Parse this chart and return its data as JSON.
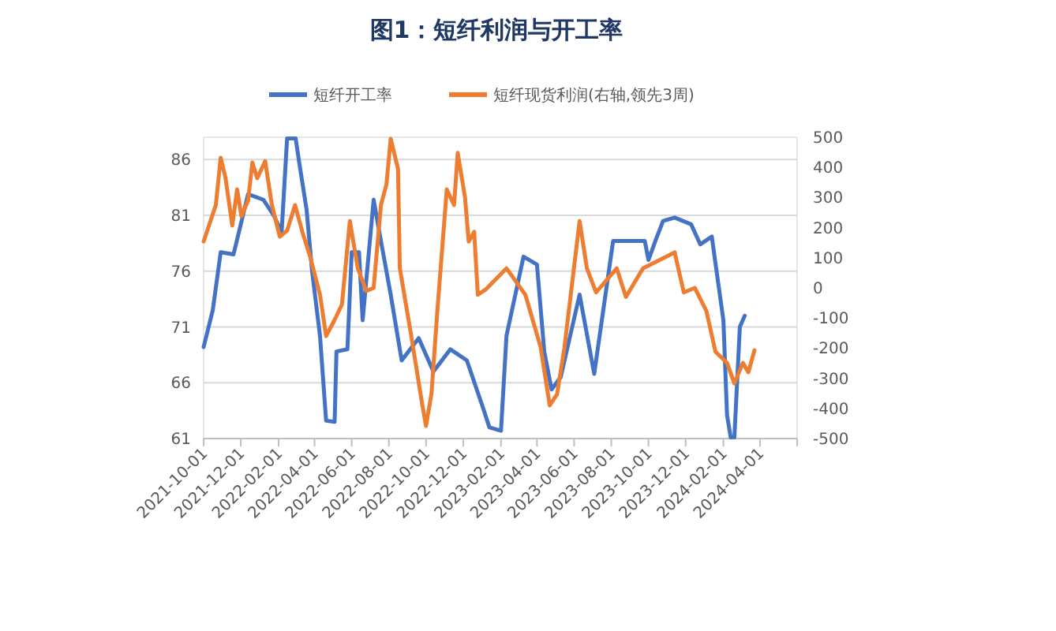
{
  "chart_data": {
    "type": "line",
    "title": "图1：短纤利润与开工率",
    "legend": "top",
    "grid": "y",
    "xlim": [
      "2021-10-01",
      "2024-06-01"
    ],
    "xticks": [
      "2021-10-01",
      "2021-12-01",
      "2022-02-01",
      "2022-04-01",
      "2022-06-01",
      "2022-08-01",
      "2022-10-01",
      "2022-12-01",
      "2023-02-01",
      "2023-04-01",
      "2023-06-01",
      "2023-08-01",
      "2023-10-01",
      "2023-12-01",
      "2024-02-01",
      "2024-04-01",
      {
        "value": "2024-06-01",
        "label": null
      }
    ],
    "ylim": [
      61,
      88
    ],
    "yticks": [
      61,
      66,
      71,
      76,
      81,
      86
    ],
    "y2lim": [
      -500,
      500
    ],
    "y2ticks": [
      -500,
      -400,
      -300,
      -200,
      -100,
      0,
      100,
      200,
      300,
      400,
      500
    ],
    "series": [
      {
        "name": "短纤开工率",
        "color": "#4472c4",
        "x": [
          "2021-10-01",
          "2021-10-16",
          "2021-10-29",
          "2021-11-19",
          "2021-12-13",
          "2022-01-07",
          "2022-01-24",
          "2022-02-06",
          "2022-02-15",
          "2022-03-01",
          "2022-03-07",
          "2022-03-19",
          "2022-03-28",
          "2022-04-10",
          "2022-04-20",
          "2022-05-04",
          "2022-05-07",
          "2022-05-25",
          "2022-06-01",
          "2022-06-13",
          "2022-06-19",
          "2022-07-07",
          "2022-07-19",
          "2022-08-04",
          "2022-08-22",
          "2022-09-19",
          "2022-10-13",
          "2022-11-10",
          "2022-12-07",
          "2023-01-01",
          "2023-01-13",
          "2023-02-01",
          "2023-02-10",
          "2023-03-10",
          "2023-04-01",
          "2023-04-13",
          "2023-04-25",
          "2023-05-10",
          "2023-06-10",
          "2023-07-04",
          "2023-08-04",
          "2023-09-04",
          "2023-09-25",
          "2023-10-01",
          "2023-10-13",
          "2023-10-25",
          "2023-11-13",
          "2023-12-10",
          "2023-12-25",
          "2024-01-13",
          "2024-01-19",
          "2024-02-01",
          "2024-02-07",
          "2024-02-13",
          "2024-02-19",
          "2024-02-28",
          "2024-03-07"
        ],
        "values": [
          69.2,
          72.5,
          77.7,
          77.5,
          82.9,
          82.4,
          81,
          79.5,
          87.9,
          87.9,
          85.7,
          81.5,
          76,
          70.2,
          62.6,
          62.5,
          68.8,
          69,
          77.7,
          77.7,
          71.6,
          82.4,
          78.7,
          73.9,
          68,
          70,
          67,
          69,
          68,
          64,
          62,
          61.7,
          70.2,
          77.3,
          76.6,
          68.8,
          65.4,
          66.5,
          73.9,
          66.8,
          78.7,
          78.7,
          78.7,
          77,
          78.8,
          80.5,
          80.8,
          80.2,
          78.4,
          79.1,
          76.7,
          71.6,
          63.1,
          61.1,
          61.1,
          71,
          72
        ]
      },
      {
        "name": "短纤现货利润(右轴,领先3周)",
        "color": "#ed7d31",
        "axis": "y2",
        "x": [
          "2021-10-01",
          "2021-10-21",
          "2021-10-29",
          "2021-11-06",
          "2021-11-17",
          "2021-11-25",
          "2021-12-02",
          "2021-12-13",
          "2021-12-20",
          "2021-12-28",
          "2022-01-10",
          "2022-01-21",
          "2022-02-03",
          "2022-02-15",
          "2022-02-28",
          "2022-03-12",
          "2022-03-25",
          "2022-04-10",
          "2022-04-20",
          "2022-05-03",
          "2022-05-16",
          "2022-05-29",
          "2022-06-11",
          "2022-06-25",
          "2022-07-07",
          "2022-07-19",
          "2022-07-28",
          "2022-08-04",
          "2022-08-16",
          "2022-08-19",
          "2022-09-06",
          "2022-09-25",
          "2022-10-01",
          "2022-10-10",
          "2022-10-19",
          "2022-11-04",
          "2022-11-16",
          "2022-11-22",
          "2022-12-04",
          "2022-12-10",
          "2022-12-19",
          "2022-12-25",
          "2023-01-07",
          "2023-02-10",
          "2023-03-13",
          "2023-04-07",
          "2023-04-22",
          "2023-05-04",
          "2023-05-16",
          "2023-06-10",
          "2023-06-22",
          "2023-07-07",
          "2023-08-10",
          "2023-08-25",
          "2023-09-22",
          "2023-11-13",
          "2023-11-28",
          "2023-12-16",
          "2024-01-04",
          "2024-01-19",
          "2024-02-07",
          "2024-02-19",
          "2024-03-04",
          "2024-03-13",
          "2024-03-23"
        ],
        "values": [
          154,
          275,
          432,
          364,
          207,
          327,
          238,
          290,
          416,
          364,
          421,
          275,
          170,
          190,
          275,
          186,
          102,
          -23,
          -160,
          -110,
          -55,
          222,
          65,
          -10,
          0,
          275,
          343,
          495,
          395,
          65,
          -150,
          -390,
          -458,
          -350,
          -92,
          327,
          275,
          448,
          300,
          154,
          186,
          -23,
          -5,
          65,
          -23,
          -196,
          -390,
          -353,
          -200,
          222,
          65,
          -15,
          65,
          -30,
          65,
          118,
          -15,
          0,
          -76,
          -212,
          -249,
          -317,
          -249,
          -280,
          -207
        ]
      }
    ]
  }
}
